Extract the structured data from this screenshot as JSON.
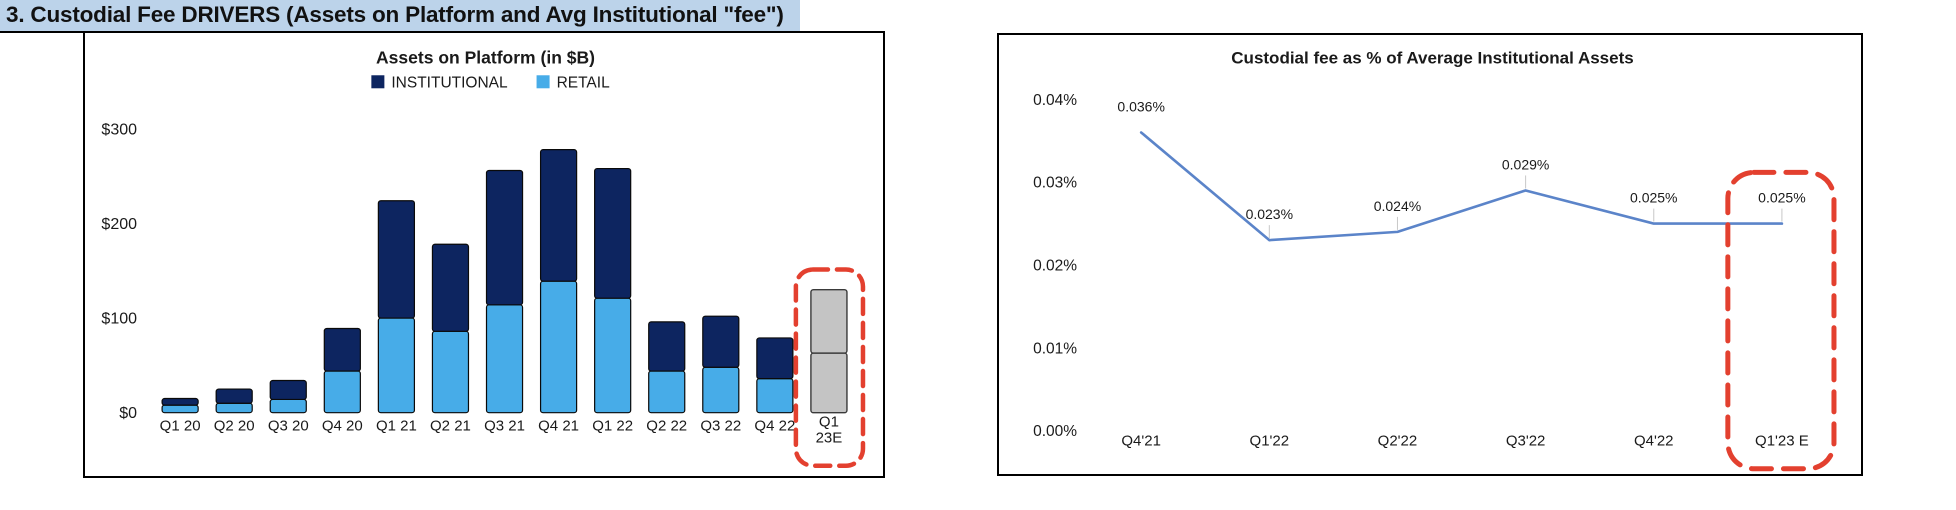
{
  "page_title": "3. Custodial Fee DRIVERS (Assets on Platform and Avg Institutional \"fee\")",
  "colors": {
    "title_highlight": "#BCD3EA",
    "institutional": "#0D2560",
    "retail": "#47ACE8",
    "estimate_fill": "#C4C4C4",
    "estimate_border": "#3A3A3A",
    "bar_outline": "#0A0A0A",
    "line": "#5B84C9",
    "annotation_red": "#E3402F",
    "leader_gray": "#C8C8C8"
  },
  "chart_data": [
    {
      "type": "bar",
      "stacked": true,
      "title": "Assets on Platform (in $B)",
      "legend": [
        "INSTITUTIONAL",
        "RETAIL"
      ],
      "legend_position": "top",
      "grid": false,
      "categories": [
        "Q1 20",
        "Q2 20",
        "Q3 20",
        "Q4 20",
        "Q1 21",
        "Q2 21",
        "Q3 21",
        "Q4 21",
        "Q1 22",
        "Q2 22",
        "Q3 22",
        "Q4 22",
        "Q1 23E"
      ],
      "series": [
        {
          "name": "INSTITUTIONAL",
          "color_key": "institutional",
          "values": [
            7,
            15,
            20,
            45,
            124,
            92,
            142,
            139,
            137,
            52,
            54,
            43,
            null
          ]
        },
        {
          "name": "RETAIL",
          "color_key": "retail",
          "values": [
            8,
            10,
            14,
            44,
            100,
            86,
            114,
            139,
            121,
            44,
            48,
            36,
            null
          ]
        }
      ],
      "estimate": {
        "category": "Q1 23E",
        "segments": [
          63,
          67
        ],
        "total": 130,
        "style": "gray bar with red dashed highlight box"
      },
      "yticks": [
        {
          "value": 0,
          "label": "$0"
        },
        {
          "value": 100,
          "label": "$100"
        },
        {
          "value": 200,
          "label": "$200"
        },
        {
          "value": 300,
          "label": "$300"
        }
      ],
      "ylim": [
        0,
        300
      ]
    },
    {
      "type": "line",
      "title": "Custodial fee as % of Average Institutional Assets",
      "grid": false,
      "categories": [
        "Q4'21",
        "Q1'22",
        "Q2'22",
        "Q3'22",
        "Q4'22",
        "Q1'23 E"
      ],
      "values": [
        0.036,
        0.023,
        0.024,
        0.029,
        0.025,
        0.025
      ],
      "point_labels": [
        "0.036%",
        "0.023%",
        "0.024%",
        "0.029%",
        "0.025%",
        "0.025%"
      ],
      "yticks": [
        {
          "value": 0,
          "label": "0.00%"
        },
        {
          "value": 0.01,
          "label": "0.01%"
        },
        {
          "value": 0.02,
          "label": "0.02%"
        },
        {
          "value": 0.03,
          "label": "0.03%"
        },
        {
          "value": 0.04,
          "label": "0.04%"
        }
      ],
      "ylim": [
        0,
        0.04
      ],
      "highlighted_category": "Q1'23 E",
      "highlight_style": "red dashed box"
    }
  ]
}
